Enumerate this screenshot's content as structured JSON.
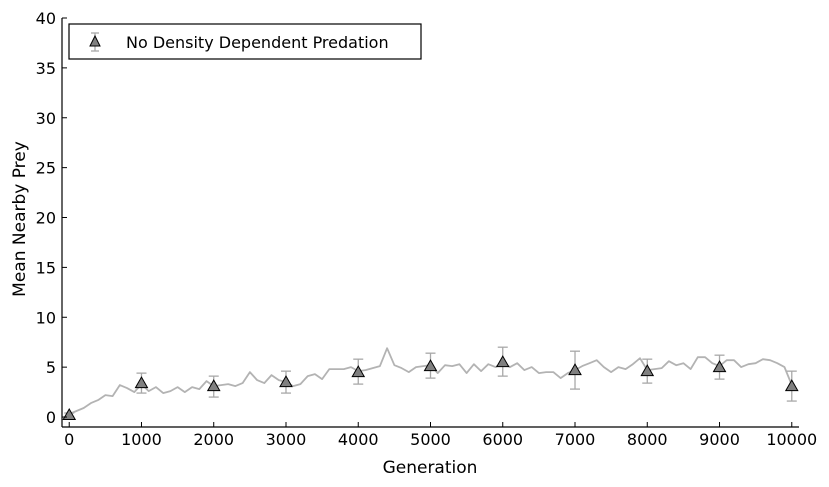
{
  "chart_data": {
    "type": "line",
    "xlabel": "Generation",
    "ylabel": "Mean Nearby Prey",
    "xlim": [
      -100,
      10100
    ],
    "ylim": [
      -1,
      40
    ],
    "xticks": [
      0,
      1000,
      2000,
      3000,
      4000,
      5000,
      6000,
      7000,
      8000,
      9000,
      10000
    ],
    "yticks": [
      0,
      5,
      10,
      15,
      20,
      25,
      30,
      35,
      40
    ],
    "legend_position": "top-left",
    "grid": false,
    "colors": {
      "line": "#b3b3b3",
      "marker_fill": "#808080",
      "marker_edge": "#000000",
      "errorbar": "#a8a8a8",
      "axis": "#000000"
    },
    "series": [
      {
        "name": "No Density Dependent Predation",
        "mean_line": {
          "x": [
            0,
            100,
            200,
            300,
            400,
            500,
            600,
            700,
            800,
            900,
            1000,
            1100,
            1200,
            1300,
            1400,
            1500,
            1600,
            1700,
            1800,
            1900,
            2000,
            2100,
            2200,
            2300,
            2400,
            2500,
            2600,
            2700,
            2800,
            2900,
            3000,
            3100,
            3200,
            3300,
            3400,
            3500,
            3600,
            3700,
            3800,
            3900,
            4000,
            4100,
            4200,
            4300,
            4400,
            4500,
            4600,
            4700,
            4800,
            4900,
            5000,
            5100,
            5200,
            5300,
            5400,
            5500,
            5600,
            5700,
            5800,
            5900,
            6000,
            6100,
            6200,
            6300,
            6400,
            6500,
            6600,
            6700,
            6800,
            6900,
            7000,
            7100,
            7200,
            7300,
            7400,
            7500,
            7600,
            7700,
            7800,
            7900,
            8000,
            8100,
            8200,
            8300,
            8400,
            8500,
            8600,
            8700,
            8800,
            8900,
            9000,
            9100,
            9200,
            9300,
            9400,
            9500,
            9600,
            9700,
            9800,
            9900,
            10000
          ],
          "y": [
            0.3,
            0.6,
            0.9,
            1.4,
            1.7,
            2.2,
            2.1,
            3.2,
            2.9,
            2.5,
            3.3,
            2.6,
            3.0,
            2.4,
            2.6,
            3.0,
            2.5,
            3.0,
            2.8,
            3.6,
            3.1,
            3.2,
            3.3,
            3.1,
            3.4,
            4.5,
            3.7,
            3.4,
            4.2,
            3.7,
            3.5,
            3.1,
            3.3,
            4.1,
            4.3,
            3.8,
            4.8,
            4.8,
            4.8,
            5.0,
            4.6,
            4.7,
            4.9,
            5.1,
            6.9,
            5.2,
            4.9,
            4.5,
            5.0,
            5.1,
            5.2,
            4.4,
            5.2,
            5.1,
            5.3,
            4.4,
            5.3,
            4.6,
            5.3,
            5.0,
            5.5,
            5.0,
            5.4,
            4.7,
            5.0,
            4.4,
            4.5,
            4.5,
            3.9,
            4.4,
            4.7,
            5.1,
            5.4,
            5.7,
            5.0,
            4.5,
            5.0,
            4.8,
            5.3,
            5.9,
            4.7,
            4.8,
            4.9,
            5.6,
            5.2,
            5.4,
            4.8,
            6.0,
            6.0,
            5.4,
            5.1,
            5.7,
            5.7,
            5.0,
            5.3,
            5.4,
            5.8,
            5.7,
            5.4,
            5.0,
            3.2
          ]
        },
        "markers": {
          "x": [
            0,
            1000,
            2000,
            3000,
            4000,
            5000,
            6000,
            7000,
            8000,
            9000,
            10000
          ],
          "y": [
            0.2,
            3.4,
            3.1,
            3.5,
            4.5,
            5.1,
            5.5,
            4.7,
            4.6,
            5.0,
            3.1
          ],
          "yerr_low": [
            0.0,
            2.4,
            2.0,
            2.4,
            3.3,
            3.9,
            4.1,
            2.8,
            3.4,
            3.8,
            1.6
          ],
          "yerr_high": [
            0.4,
            4.4,
            4.1,
            4.6,
            5.8,
            6.4,
            7.0,
            6.6,
            5.8,
            6.2,
            4.6
          ]
        }
      }
    ]
  }
}
